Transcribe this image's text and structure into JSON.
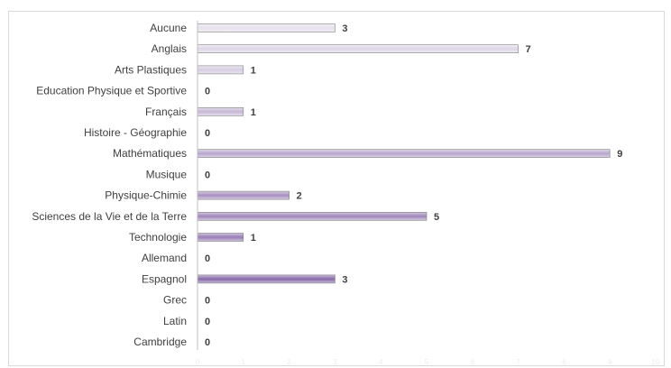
{
  "chart_data": {
    "type": "bar",
    "orientation": "horizontal",
    "title": "",
    "xlabel": "",
    "ylabel": "",
    "categories": [
      "Aucune",
      "Anglais",
      "Arts Plastiques",
      "Education Physique et Sportive",
      "Français",
      "Histoire - Géographie",
      "Mathématiques",
      "Musique",
      "Physique-Chimie",
      "Sciences de la Vie et de la Terre",
      "Technologie",
      "Allemand",
      "Espagnol",
      "Grec",
      "Latin",
      "Cambridge"
    ],
    "values": [
      3,
      7,
      1,
      0,
      1,
      0,
      9,
      0,
      2,
      5,
      1,
      0,
      3,
      0,
      0,
      0
    ],
    "data_labels": [
      "3",
      "7",
      "1",
      "0",
      "1",
      "0",
      "9",
      "0",
      "2",
      "5",
      "1",
      "0",
      "3",
      "0",
      "0",
      "0"
    ],
    "xlim": [
      0,
      10
    ],
    "xticks": [
      "0",
      "1",
      "2",
      "3",
      "4",
      "5",
      "6",
      "7",
      "8",
      "9",
      "10"
    ],
    "grid": false,
    "legend": "none",
    "bar_color_light": "#e6e0ec",
    "bar_color_dark": "#6f4a9a",
    "bar_edge_color": "#7f7f7f"
  }
}
